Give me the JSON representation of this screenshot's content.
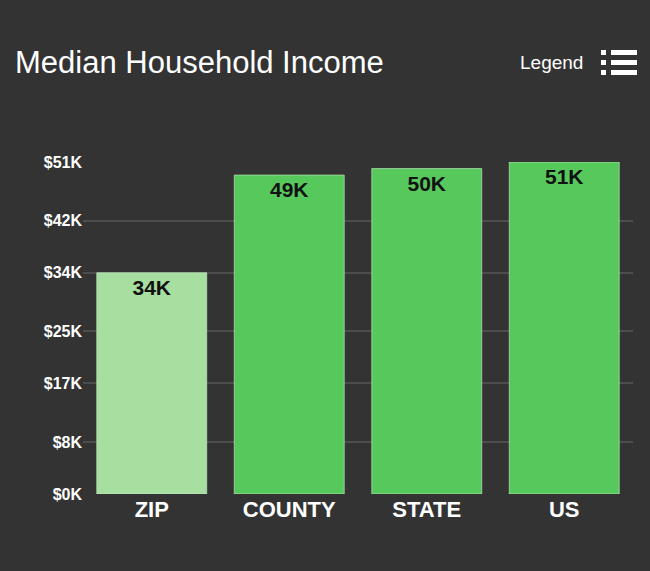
{
  "chart_data": {
    "type": "bar",
    "title": "Median Household Income",
    "categories": [
      "ZIP",
      "COUNTY",
      "STATE",
      "US"
    ],
    "values": [
      34,
      49,
      50,
      51
    ],
    "value_labels": [
      "34K",
      "49K",
      "50K",
      "51K"
    ],
    "colors": [
      "#a6dfa0",
      "#57c85c",
      "#57c85c",
      "#57c85c"
    ],
    "ylim": [
      0,
      51
    ],
    "yticks": [
      {
        "value": 0,
        "label": "$0K"
      },
      {
        "value": 8,
        "label": "$8K"
      },
      {
        "value": 17,
        "label": "$17K"
      },
      {
        "value": 25,
        "label": "$25K"
      },
      {
        "value": 34,
        "label": "$34K"
      },
      {
        "value": 42,
        "label": "$42K"
      },
      {
        "value": 51,
        "label": "$51K"
      }
    ],
    "grid": true,
    "data_labels": true,
    "annotations": [
      "Legend"
    ]
  }
}
